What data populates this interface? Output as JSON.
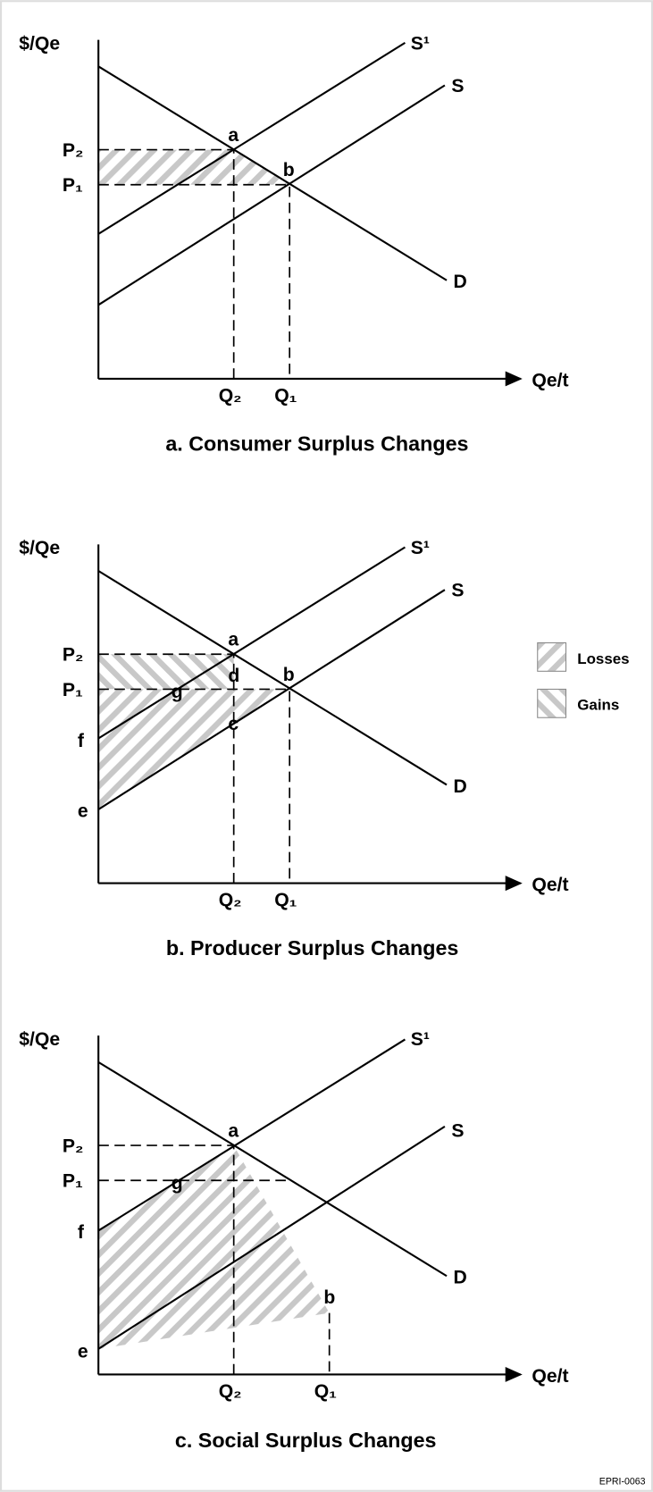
{
  "panels": [
    {
      "y_axis": "$/Qe",
      "x_axis": "Qe/t",
      "supply_new": "S¹",
      "supply": "S",
      "demand": "D",
      "point_a": "a",
      "point_b": "b",
      "price_2": "P₂",
      "price_1": "P₁",
      "quantity_2": "Q₂",
      "quantity_1": "Q₁",
      "caption": "a.  Consumer Surplus Changes"
    },
    {
      "y_axis": "$/Qe",
      "x_axis": "Qe/t",
      "supply_new": "S¹",
      "supply": "S",
      "demand": "D",
      "point_a": "a",
      "point_b": "b",
      "point_c": "c",
      "point_d": "d",
      "point_g": "g",
      "point_f": "f",
      "point_e": "e",
      "price_2": "P₂",
      "price_1": "P₁",
      "quantity_2": "Q₂",
      "quantity_1": "Q₁",
      "caption": "b.  Producer Surplus Changes"
    },
    {
      "y_axis": "$/Qe",
      "x_axis": "Qe/t",
      "supply_new": "S¹",
      "supply": "S",
      "demand": "D",
      "point_a": "a",
      "point_b": "b",
      "point_g": "g",
      "point_f": "f",
      "point_e": "e",
      "price_2": "P₂",
      "price_1": "P₁",
      "quantity_2": "Q₂",
      "quantity_1": "Q₁",
      "caption": "c.  Social Surplus Changes"
    }
  ],
  "legend": {
    "losses": "Losses",
    "gains": "Gains"
  },
  "footer": "EPRI-0063"
}
